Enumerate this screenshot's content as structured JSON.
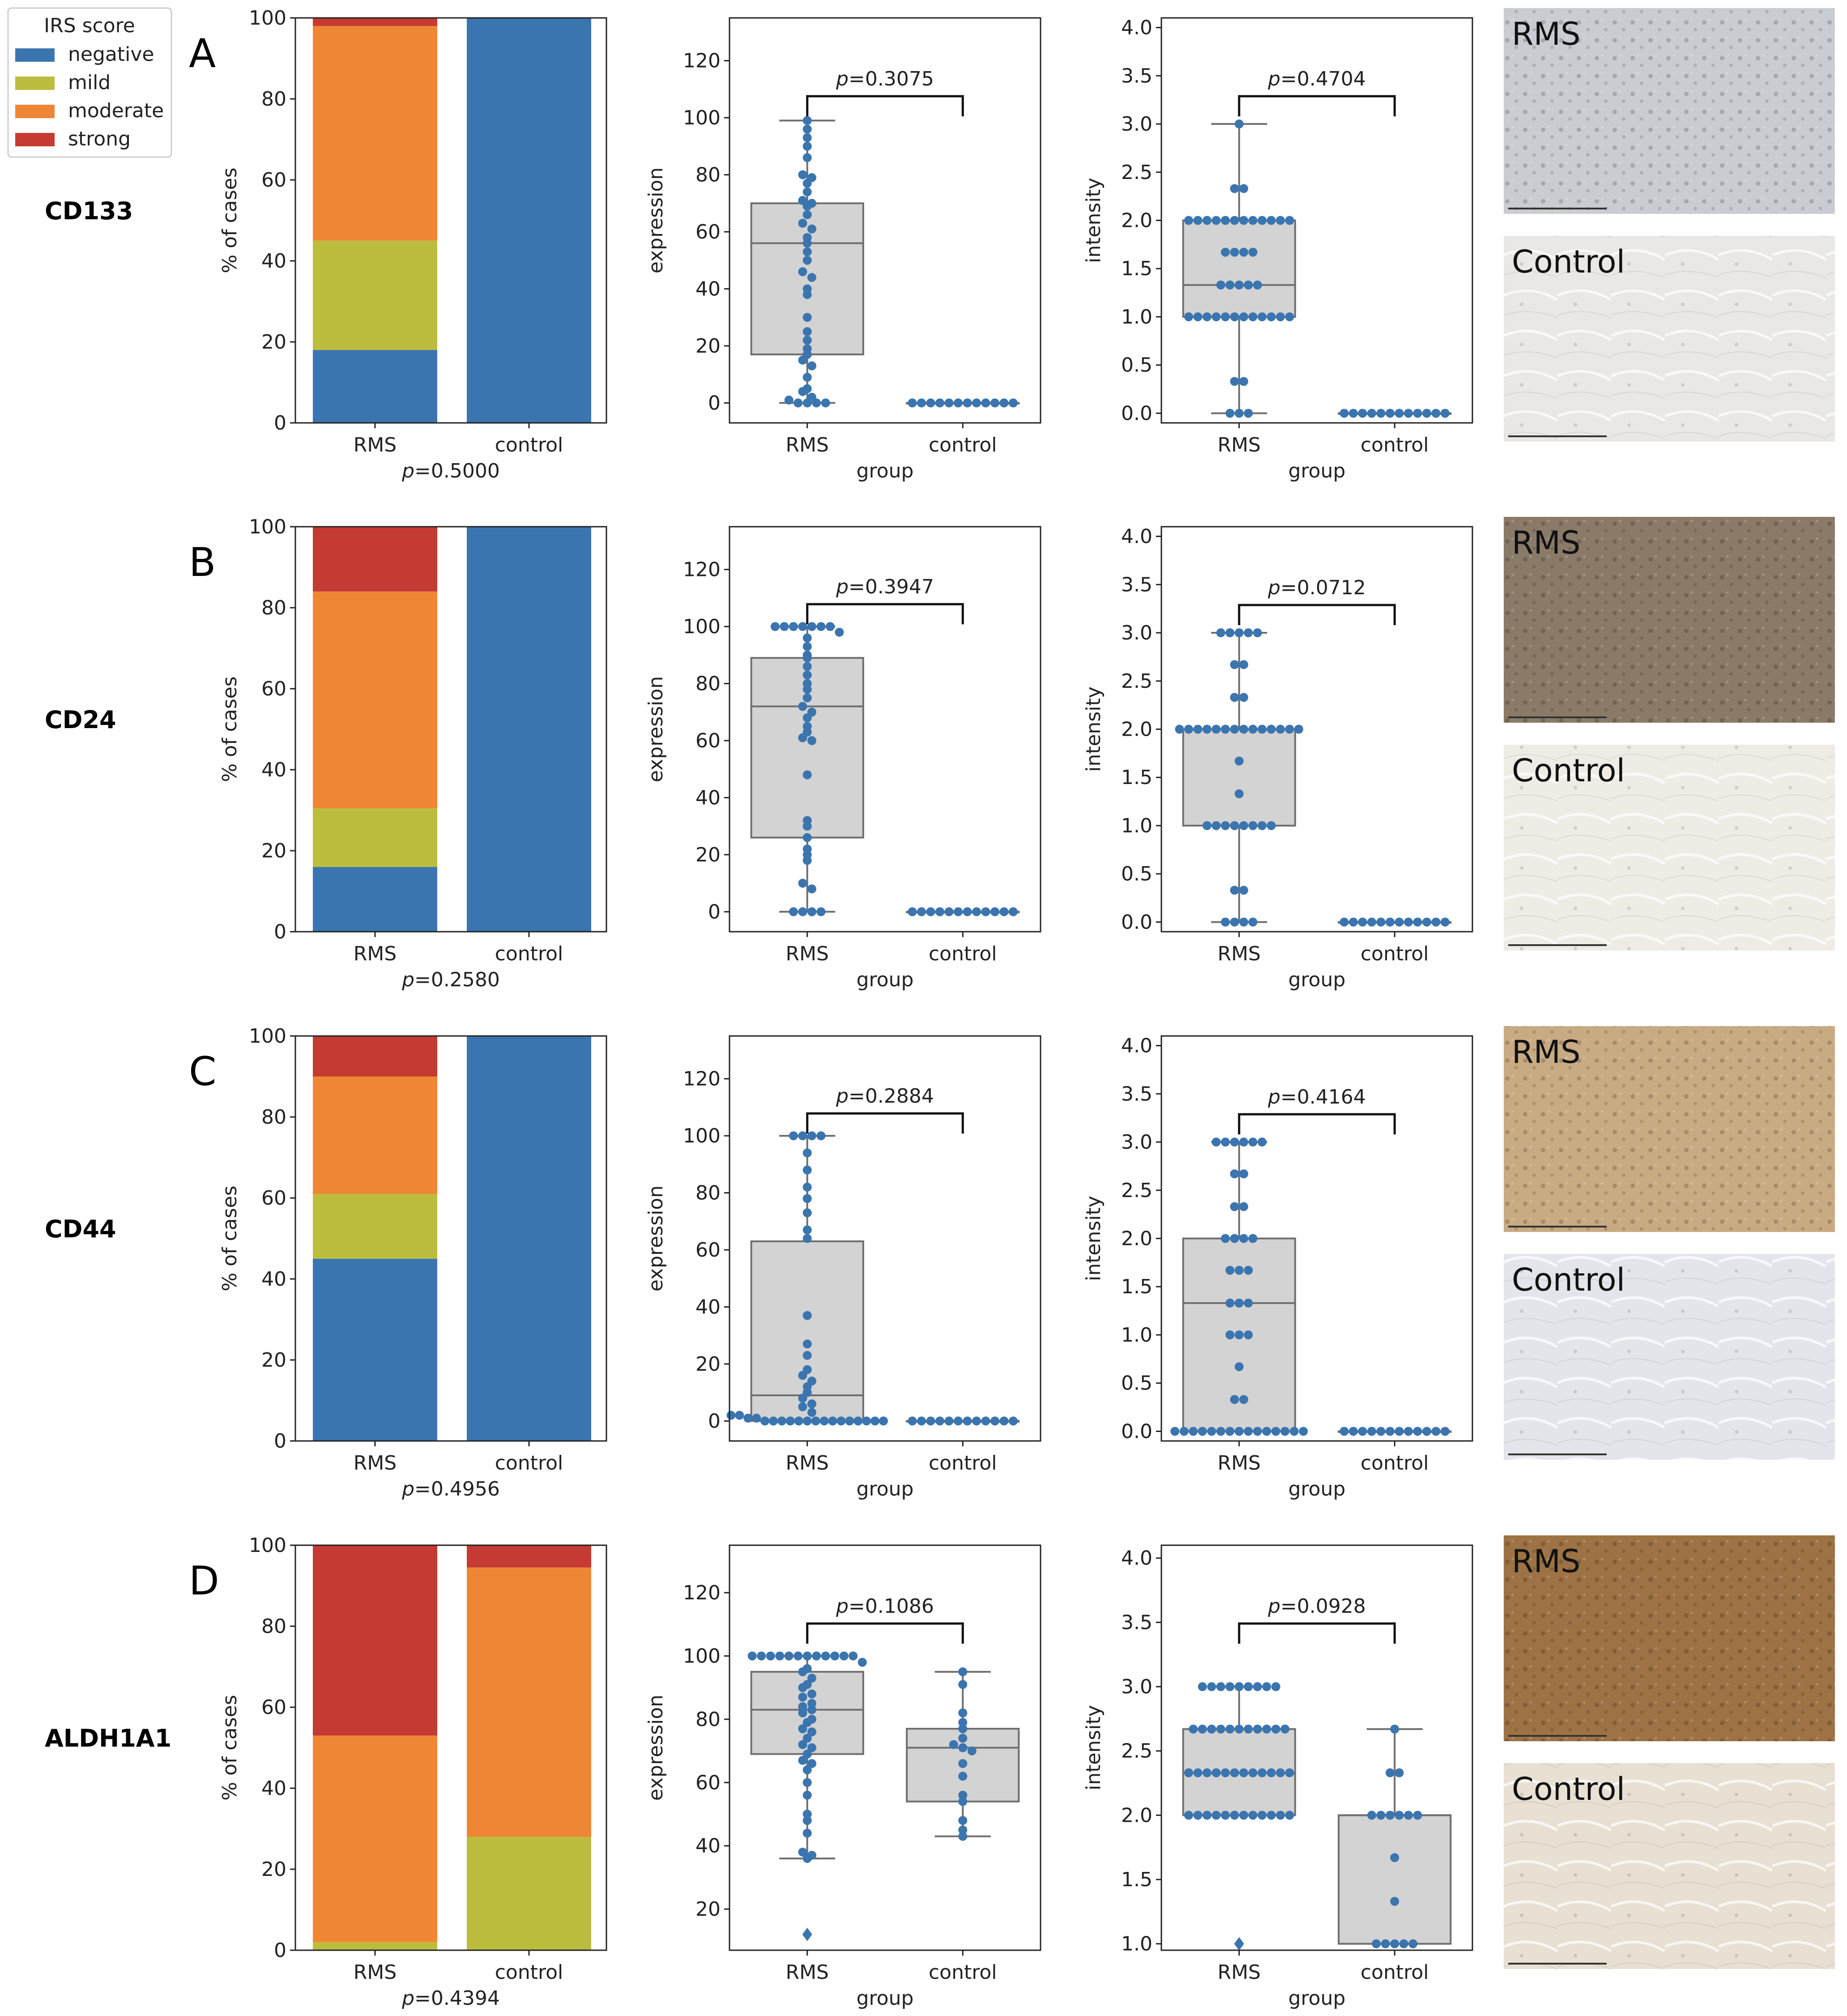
{
  "legend": {
    "title": "IRS score",
    "items": [
      {
        "label": "negative",
        "color": "#3b75af"
      },
      {
        "label": "mild",
        "color": "#bcbd3f"
      },
      {
        "label": "moderate",
        "color": "#ef8636"
      },
      {
        "label": "strong",
        "color": "#c53a32"
      }
    ]
  },
  "chart_data": [
    {
      "panel": "A",
      "marker": "CD133",
      "stacked_bar": {
        "type": "bar",
        "stacked": true,
        "ylabel": "% of cases",
        "ylim": [
          0,
          100
        ],
        "yticks": [
          0,
          20,
          40,
          60,
          80,
          100
        ],
        "categories": [
          "RMS",
          "control"
        ],
        "p_label": "p=0.5000",
        "series": [
          {
            "name": "negative",
            "values": [
              18,
              100
            ]
          },
          {
            "name": "mild",
            "values": [
              27,
              0
            ]
          },
          {
            "name": "moderate",
            "values": [
              53,
              0
            ]
          },
          {
            "name": "strong",
            "values": [
              2,
              0
            ]
          }
        ]
      },
      "expression": {
        "type": "box+swarm",
        "xlabel": "group",
        "ylabel": "expression",
        "ylim": [
          -7,
          135
        ],
        "yticks": [
          0,
          20,
          40,
          60,
          80,
          100,
          120
        ],
        "categories": [
          "RMS",
          "control"
        ],
        "p_label": "p=0.3075",
        "boxes": [
          {
            "q1": 17,
            "median": 56,
            "q3": 70,
            "whisker_low": 0,
            "whisker_high": 99,
            "points": [
              99,
              96,
              93,
              90,
              86,
              80,
              79,
              77,
              74,
              71,
              70,
              69,
              66,
              63,
              61,
              58,
              56,
              53,
              50,
              46,
              44,
              40,
              38,
              30,
              25,
              22,
              19,
              17,
              15,
              13,
              9,
              5,
              4,
              2,
              1,
              0,
              0,
              0,
              0
            ]
          },
          {
            "q1": 0,
            "median": 0,
            "q3": 0,
            "whisker_low": 0,
            "whisker_high": 0,
            "points": [
              0,
              0,
              0,
              0,
              0,
              0,
              0,
              0,
              0,
              0,
              0,
              0
            ]
          }
        ]
      },
      "intensity": {
        "type": "box+swarm",
        "xlabel": "group",
        "ylabel": "intensity",
        "ylim": [
          -0.1,
          4.1
        ],
        "yticks": [
          0.0,
          0.5,
          1.0,
          1.5,
          2.0,
          2.5,
          3.0,
          3.5,
          4.0
        ],
        "categories": [
          "RMS",
          "control"
        ],
        "p_label": "p=0.4704",
        "boxes": [
          {
            "q1": 1.0,
            "median": 1.33,
            "q3": 2.0,
            "whisker_low": 0,
            "whisker_high": 3.0,
            "points": [
              3,
              2.33,
              2.33,
              2,
              2,
              2,
              2,
              2,
              2,
              2,
              2,
              2,
              2,
              2,
              2,
              1.67,
              1.67,
              1.67,
              1.67,
              1.33,
              1.33,
              1.33,
              1.33,
              1.33,
              1,
              1,
              1,
              1,
              1,
              1,
              1,
              1,
              1,
              1,
              1,
              1,
              0.33,
              0.33,
              0,
              0,
              0
            ]
          },
          {
            "q1": 0,
            "median": 0,
            "q3": 0,
            "whisker_low": 0,
            "whisker_high": 0,
            "points": [
              0,
              0,
              0,
              0,
              0,
              0,
              0,
              0,
              0,
              0,
              0,
              0
            ]
          }
        ]
      },
      "images": {
        "rms_label": "RMS",
        "control_label": "Control",
        "rms_color": "#c9cdd2",
        "control_color": "#e9e8e6"
      }
    },
    {
      "panel": "B",
      "marker": "CD24",
      "stacked_bar": {
        "type": "bar",
        "stacked": true,
        "ylabel": "% of cases",
        "ylim": [
          0,
          100
        ],
        "yticks": [
          0,
          20,
          40,
          60,
          80,
          100
        ],
        "categories": [
          "RMS",
          "control"
        ],
        "p_label": "p=0.2580",
        "series": [
          {
            "name": "negative",
            "values": [
              16,
              100
            ]
          },
          {
            "name": "mild",
            "values": [
              14.5,
              0
            ]
          },
          {
            "name": "moderate",
            "values": [
              53.5,
              0
            ]
          },
          {
            "name": "strong",
            "values": [
              16,
              0
            ]
          }
        ]
      },
      "expression": {
        "type": "box+swarm",
        "xlabel": "group",
        "ylabel": "expression",
        "ylim": [
          -7,
          135
        ],
        "yticks": [
          0,
          20,
          40,
          60,
          80,
          100,
          120
        ],
        "categories": [
          "RMS",
          "control"
        ],
        "p_label": "p=0.3947",
        "boxes": [
          {
            "q1": 26,
            "median": 72,
            "q3": 89,
            "whisker_low": 0,
            "whisker_high": 100,
            "points": [
              100,
              100,
              100,
              100,
              100,
              100,
              100,
              98,
              96,
              93,
              90,
              89,
              86,
              83,
              80,
              78,
              75,
              72,
              70,
              68,
              65,
              63,
              61,
              60,
              48,
              32,
              30,
              26,
              22,
              20,
              18,
              10,
              8,
              0,
              0,
              0,
              0
            ]
          },
          {
            "q1": 0,
            "median": 0,
            "q3": 0,
            "whisker_low": 0,
            "whisker_high": 0,
            "points": [
              0,
              0,
              0,
              0,
              0,
              0,
              0,
              0,
              0,
              0,
              0,
              0
            ]
          }
        ]
      },
      "intensity": {
        "type": "box+swarm",
        "xlabel": "group",
        "ylabel": "intensity",
        "ylim": [
          -0.1,
          4.1
        ],
        "yticks": [
          0.0,
          0.5,
          1.0,
          1.5,
          2.0,
          2.5,
          3.0,
          3.5,
          4.0
        ],
        "categories": [
          "RMS",
          "control"
        ],
        "p_label": "p=0.0712",
        "boxes": [
          {
            "q1": 1.0,
            "median": 2.0,
            "q3": 2.0,
            "whisker_low": 0,
            "whisker_high": 3.0,
            "points": [
              3,
              3,
              3,
              3,
              3,
              2.67,
              2.67,
              2.33,
              2.33,
              2,
              2,
              2,
              2,
              2,
              2,
              2,
              2,
              2,
              2,
              2,
              2,
              2,
              2,
              1.67,
              1.33,
              1,
              1,
              1,
              1,
              1,
              1,
              1,
              1,
              0.33,
              0.33,
              0,
              0,
              0,
              0
            ]
          },
          {
            "q1": 0,
            "median": 0,
            "q3": 0,
            "whisker_low": 0,
            "whisker_high": 0,
            "points": [
              0,
              0,
              0,
              0,
              0,
              0,
              0,
              0,
              0,
              0,
              0,
              0
            ]
          }
        ]
      },
      "images": {
        "rms_label": "RMS",
        "control_label": "Control",
        "rms_color": "#8a7a68",
        "control_color": "#efece6"
      }
    },
    {
      "panel": "C",
      "marker": "CD44",
      "stacked_bar": {
        "type": "bar",
        "stacked": true,
        "ylabel": "% of cases",
        "ylim": [
          0,
          100
        ],
        "yticks": [
          0,
          20,
          40,
          60,
          80,
          100
        ],
        "categories": [
          "RMS",
          "control"
        ],
        "p_label": "p=0.4956",
        "series": [
          {
            "name": "negative",
            "values": [
              45,
              100
            ]
          },
          {
            "name": "mild",
            "values": [
              16,
              0
            ]
          },
          {
            "name": "moderate",
            "values": [
              29,
              0
            ]
          },
          {
            "name": "strong",
            "values": [
              10,
              0
            ]
          }
        ]
      },
      "expression": {
        "type": "box+swarm",
        "xlabel": "group",
        "ylabel": "expression",
        "ylim": [
          -7,
          135
        ],
        "yticks": [
          0,
          20,
          40,
          60,
          80,
          100,
          120
        ],
        "categories": [
          "RMS",
          "control"
        ],
        "p_label": "p=0.2884",
        "boxes": [
          {
            "q1": 0,
            "median": 9,
            "q3": 63,
            "whisker_low": 0,
            "whisker_high": 100,
            "points": [
              100,
              100,
              100,
              100,
              94,
              88,
              82,
              78,
              73,
              67,
              64,
              37,
              27,
              23,
              18,
              16,
              14,
              12,
              10,
              8,
              6,
              5,
              3,
              2,
              2,
              1,
              1,
              0,
              0,
              0,
              0,
              0,
              0,
              0,
              0,
              0,
              0,
              0,
              0,
              0,
              0,
              0
            ]
          },
          {
            "q1": 0,
            "median": 0,
            "q3": 0,
            "whisker_low": 0,
            "whisker_high": 0,
            "points": [
              0,
              0,
              0,
              0,
              0,
              0,
              0,
              0,
              0,
              0,
              0,
              0
            ]
          }
        ]
      },
      "intensity": {
        "type": "box+swarm",
        "xlabel": "group",
        "ylabel": "intensity",
        "ylim": [
          -0.1,
          4.1
        ],
        "yticks": [
          0.0,
          0.5,
          1.0,
          1.5,
          2.0,
          2.5,
          3.0,
          3.5,
          4.0
        ],
        "categories": [
          "RMS",
          "control"
        ],
        "p_label": "p=0.4164",
        "boxes": [
          {
            "q1": 0,
            "median": 1.33,
            "q3": 2.0,
            "whisker_low": 0,
            "whisker_high": 3.0,
            "points": [
              3,
              3,
              3,
              3,
              3,
              3,
              2.67,
              2.67,
              2.33,
              2.33,
              2,
              2,
              2,
              2,
              1.67,
              1.67,
              1.67,
              1.33,
              1.33,
              1.33,
              1,
              1,
              1,
              0.67,
              0.33,
              0.33,
              0,
              0,
              0,
              0,
              0,
              0,
              0,
              0,
              0,
              0,
              0,
              0,
              0,
              0,
              0
            ]
          },
          {
            "q1": 0,
            "median": 0,
            "q3": 0,
            "whisker_low": 0,
            "whisker_high": 0,
            "points": [
              0,
              0,
              0,
              0,
              0,
              0,
              0,
              0,
              0,
              0,
              0,
              0
            ]
          }
        ]
      },
      "images": {
        "rms_label": "RMS",
        "control_label": "Control",
        "rms_color": "#c8ab83",
        "control_color": "#e4e5ea"
      }
    },
    {
      "panel": "D",
      "marker": "ALDH1A1",
      "stacked_bar": {
        "type": "bar",
        "stacked": true,
        "ylabel": "% of cases",
        "ylim": [
          0,
          100
        ],
        "yticks": [
          0,
          20,
          40,
          60,
          80,
          100
        ],
        "categories": [
          "RMS",
          "control"
        ],
        "p_label": "p=0.4394",
        "series": [
          {
            "name": "negative",
            "values": [
              0,
              0
            ]
          },
          {
            "name": "mild",
            "values": [
              2,
              28
            ]
          },
          {
            "name": "moderate",
            "values": [
              51,
              66.5
            ]
          },
          {
            "name": "strong",
            "values": [
              47,
              5.5
            ]
          }
        ]
      },
      "expression": {
        "type": "box+swarm",
        "xlabel": "group",
        "ylabel": "expression",
        "ylim": [
          7,
          135
        ],
        "yticks": [
          20,
          40,
          60,
          80,
          100,
          120
        ],
        "categories": [
          "RMS",
          "control"
        ],
        "p_label": "p=0.1086",
        "boxes": [
          {
            "q1": 69,
            "median": 83,
            "q3": 95,
            "whisker_low": 36,
            "whisker_high": 100,
            "outliers": [
              12
            ],
            "points": [
              100,
              100,
              100,
              100,
              100,
              100,
              100,
              100,
              100,
              100,
              100,
              100,
              98,
              96,
              95,
              93,
              91,
              90,
              88,
              87,
              85,
              84,
              83,
              82,
              80,
              79,
              77,
              76,
              74,
              72,
              71,
              69,
              67,
              66,
              64,
              60,
              56,
              50,
              48,
              44,
              38,
              37,
              36
            ]
          },
          {
            "q1": 54,
            "median": 71,
            "q3": 77,
            "whisker_low": 43,
            "whisker_high": 95,
            "points": [
              95,
              91,
              82,
              79,
              77,
              74,
              72,
              71,
              70,
              66,
              62,
              56,
              54,
              48,
              45,
              43
            ]
          }
        ]
      },
      "intensity": {
        "type": "box+swarm",
        "xlabel": "group",
        "ylabel": "intensity",
        "ylim": [
          0.95,
          4.1
        ],
        "yticks": [
          1.0,
          1.5,
          2.0,
          2.5,
          3.0,
          3.5,
          4.0
        ],
        "categories": [
          "RMS",
          "control"
        ],
        "p_label": "p=0.0928",
        "boxes": [
          {
            "q1": 2.0,
            "median": 2.33,
            "q3": 2.67,
            "whisker_low": 2.0,
            "whisker_high": 3.0,
            "outliers": [
              1.0
            ],
            "points": [
              3,
              3,
              3,
              3,
              3,
              3,
              3,
              3,
              3,
              2.67,
              2.67,
              2.67,
              2.67,
              2.67,
              2.67,
              2.67,
              2.67,
              2.67,
              2.67,
              2.67,
              2.33,
              2.33,
              2.33,
              2.33,
              2.33,
              2.33,
              2.33,
              2.33,
              2.33,
              2.33,
              2.33,
              2.33,
              2,
              2,
              2,
              2,
              2,
              2,
              2,
              2,
              2,
              2,
              2,
              2
            ]
          },
          {
            "q1": 1.0,
            "median": 2.0,
            "q3": 2.0,
            "whisker_low": 1.0,
            "whisker_high": 2.67,
            "points": [
              2.67,
              2.33,
              2.33,
              2,
              2,
              2,
              2,
              2,
              2,
              1.67,
              1.33,
              1,
              1,
              1,
              1,
              1
            ]
          }
        ]
      },
      "images": {
        "rms_label": "RMS",
        "control_label": "Control",
        "rms_color": "#9d7244",
        "control_color": "#e8e0d2"
      }
    }
  ]
}
